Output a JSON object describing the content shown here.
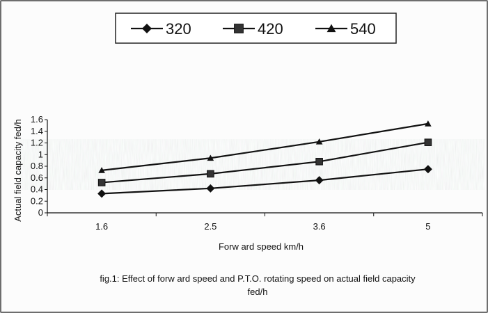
{
  "chart_data": {
    "type": "line",
    "title": "",
    "xlabel": "Forw ard speed km/h",
    "ylabel": "Actual field capacity fed/h",
    "categories": [
      "1.6",
      "2.5",
      "3.6",
      "5"
    ],
    "ylim": [
      0,
      1.6
    ],
    "yticks": [
      "0",
      "0.2",
      "0.4",
      "0.6",
      "0.8",
      "1",
      "1.2",
      "1.4",
      "1.6"
    ],
    "series": [
      {
        "name": "320",
        "marker": "diamond",
        "values": [
          0.33,
          0.42,
          0.56,
          0.75
        ]
      },
      {
        "name": "420",
        "marker": "square",
        "values": [
          0.52,
          0.67,
          0.88,
          1.21
        ]
      },
      {
        "name": "540",
        "marker": "triangle",
        "values": [
          0.73,
          0.94,
          1.22,
          1.53
        ]
      }
    ],
    "legend_position": "top-center",
    "grid": false,
    "caption_lines": [
      "fig.1: Effect of forw ard speed and P.T.O. rotating speed on actual field capacity",
      "fed/h"
    ],
    "colors": {
      "line": "#111111",
      "plot_band": "#9aa898"
    }
  }
}
